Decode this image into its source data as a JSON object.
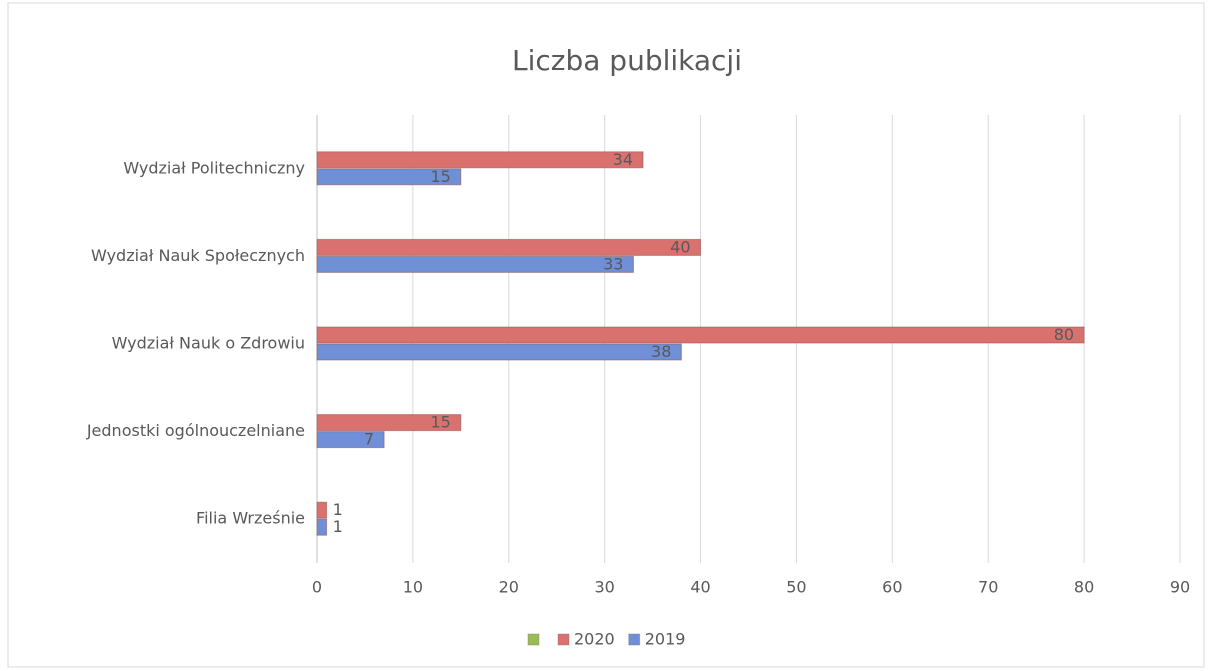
{
  "chart_data": {
    "type": "bar",
    "orientation": "horizontal",
    "title": "Liczba publikacji",
    "categories": [
      "Wydział Politechniczny",
      "Wydział Nauk Społecznych",
      "Wydział Nauk o Zdrowiu",
      "Jednostki ogólnouczelniane",
      "Filia Wrześnie"
    ],
    "series": [
      {
        "color": "#9bbb59",
        "values": [
          null,
          null,
          null,
          null,
          null
        ]
      },
      {
        "name": "2020",
        "color": "#d9726f",
        "values": [
          34,
          40,
          80,
          15,
          1
        ]
      },
      {
        "name": "2019",
        "color": "#6f8fd6",
        "values": [
          15,
          33,
          38,
          7,
          1
        ]
      }
    ],
    "xlim": [
      0,
      90
    ],
    "xticks": [
      0,
      10,
      20,
      30,
      40,
      50,
      60,
      70,
      80,
      90
    ],
    "grid": true,
    "legend": "bottom"
  }
}
